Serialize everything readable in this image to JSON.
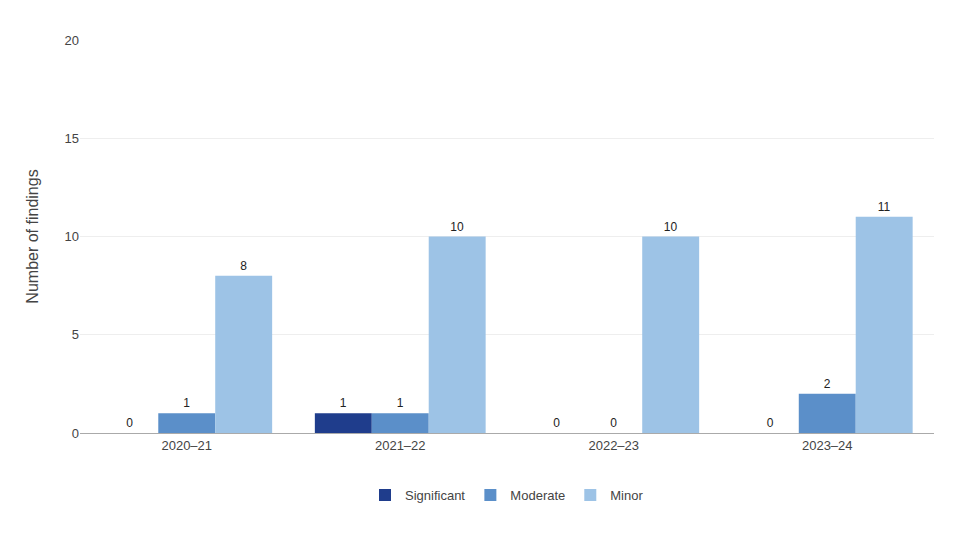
{
  "chart_data": {
    "type": "bar",
    "categories": [
      "2020–21",
      "2021–22",
      "2022–23",
      "2023–24"
    ],
    "series": [
      {
        "name": "Significant",
        "color": "#1f3d8c",
        "values": [
          0,
          1,
          0,
          0
        ]
      },
      {
        "name": "Moderate",
        "color": "#5b8fc9",
        "values": [
          1,
          1,
          0,
          2
        ]
      },
      {
        "name": "Minor",
        "color": "#9dc3e6",
        "values": [
          8,
          10,
          10,
          11
        ]
      }
    ],
    "ylabel": "Number of findings",
    "ylim": [
      0,
      20
    ],
    "yticks": [
      0,
      5,
      10,
      15,
      20
    ],
    "grid": true,
    "legend": "bottom",
    "data_labels": true
  }
}
